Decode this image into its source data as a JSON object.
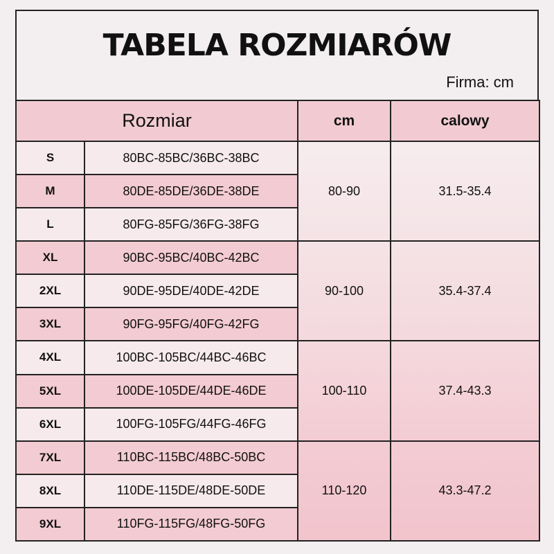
{
  "title": "TABELA ROZMIARÓW",
  "unit_label": "Firma: cm",
  "headers": {
    "size": "Rozmiar",
    "cm": "cm",
    "inch": "calowy"
  },
  "rows": [
    {
      "size": "S",
      "bra": "80BC-85BC/36BC-38BC"
    },
    {
      "size": "M",
      "bra": "80DE-85DE/36DE-38DE"
    },
    {
      "size": "L",
      "bra": "80FG-85FG/36FG-38FG"
    },
    {
      "size": "XL",
      "bra": "90BC-95BC/40BC-42BC"
    },
    {
      "size": "2XL",
      "bra": "90DE-95DE/40DE-42DE"
    },
    {
      "size": "3XL",
      "bra": "90FG-95FG/40FG-42FG"
    },
    {
      "size": "4XL",
      "bra": "100BC-105BC/44BC-46BC"
    },
    {
      "size": "5XL",
      "bra": "100DE-105DE/44DE-46DE"
    },
    {
      "size": "6XL",
      "bra": "100FG-105FG/44FG-46FG"
    },
    {
      "size": "7XL",
      "bra": "110BC-115BC/48BC-50BC"
    },
    {
      "size": "8XL",
      "bra": "110DE-115DE/48DE-50DE"
    },
    {
      "size": "9XL",
      "bra": "110FG-115FG/48FG-50FG"
    }
  ],
  "groups": [
    {
      "cm": "80-90",
      "inch": "31.5-35.4"
    },
    {
      "cm": "90-100",
      "inch": "35.4-37.4"
    },
    {
      "cm": "100-110",
      "inch": "37.4-43.3"
    },
    {
      "cm": "110-120",
      "inch": "43.3-47.2"
    }
  ],
  "colors": {
    "pink": "#f3cbd2",
    "light": "#f6eaec",
    "border": "#222222"
  }
}
